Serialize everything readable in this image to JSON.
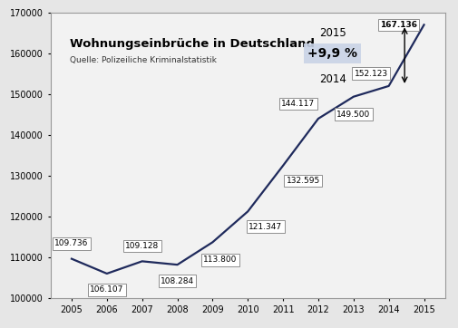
{
  "chart_data": {
    "type": "line",
    "title": "Wohnungseinbrüche in Deutschland",
    "subtitle": "Quelle: Polizeiliche Kriminalstatistik",
    "categories": [
      "2005",
      "2006",
      "2007",
      "2008",
      "2009",
      "2010",
      "2011",
      "2012",
      "2013",
      "2014",
      "2015"
    ],
    "values": [
      109736,
      106107,
      109128,
      108284,
      113800,
      121347,
      132595,
      144117,
      149500,
      152123,
      167136
    ],
    "value_labels": [
      "109.736",
      "106.107",
      "109.128",
      "108.284",
      "113.800",
      "121.347",
      "132.595",
      "144.117",
      "149.500",
      "152.123",
      "167.136"
    ],
    "color": "#1f2a5c",
    "data_labels": true,
    "ylim": [
      100000,
      170000
    ],
    "yticks": [
      100000,
      110000,
      120000,
      130000,
      140000,
      150000,
      160000,
      170000
    ],
    "grid": false,
    "annotation": {
      "top": "2015",
      "change": "+9,9 %",
      "bottom": "2014"
    }
  }
}
